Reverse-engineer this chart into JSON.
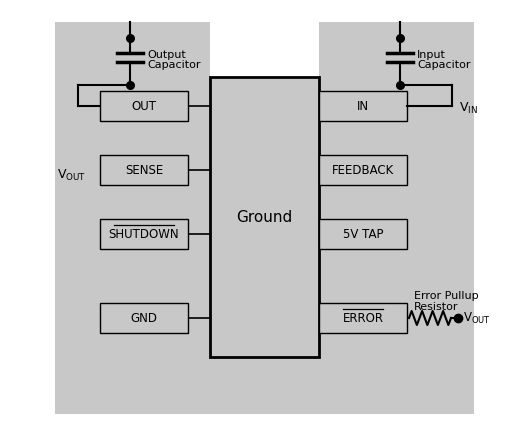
{
  "bg_gray": "#c8c8c8",
  "white": "#ffffff",
  "black": "#000000",
  "fig_w": 5.29,
  "fig_h": 4.36,
  "dpi": 100,
  "left_pins": [
    "OUT",
    "SENSE",
    "SHUTDOWN",
    "GND"
  ],
  "right_pins": [
    "IN",
    "FEEDBACK",
    "5V TAP",
    "ERROR"
  ],
  "ic_label": "Ground",
  "output_cap_label": [
    "Output",
    "Capacitor"
  ],
  "input_cap_label": [
    "Input",
    "Capacitor"
  ],
  "error_pullup_label": [
    "Error Pullup",
    "Resistor"
  ]
}
